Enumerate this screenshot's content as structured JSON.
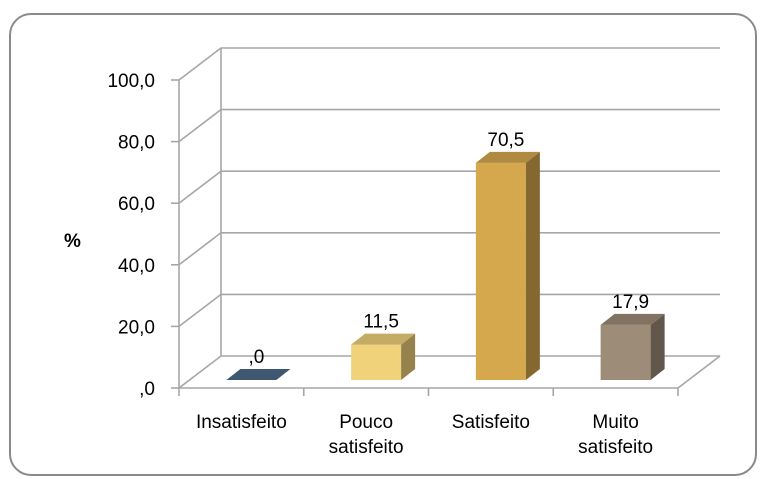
{
  "chart_data": {
    "type": "bar",
    "ylabel": "%",
    "categories": [
      "Insatisfeito",
      "Pouco satisfeito",
      "Satisfeito",
      "Muito satisfeito"
    ],
    "category_lines": [
      [
        "Insatisfeito"
      ],
      [
        "Pouco",
        "satisfeito"
      ],
      [
        "Satisfeito"
      ],
      [
        "Muito",
        "satisfeito"
      ]
    ],
    "values": [
      0.0,
      11.5,
      70.5,
      17.9
    ],
    "data_labels": [
      ",0",
      "11,5",
      "70,5",
      "17,9"
    ],
    "ylim": [
      0,
      100
    ],
    "yticks": [
      ",0",
      "20,0",
      "40,0",
      "60,0",
      "80,0",
      "100,0"
    ],
    "grid": true,
    "style": "3d-column",
    "colors": {
      "bars": [
        "#4e6a8a",
        "#f0d27a",
        "#d6a84e",
        "#9c8c78"
      ],
      "grid": "#a6a6a6",
      "frame": "#8a8a8a"
    }
  }
}
